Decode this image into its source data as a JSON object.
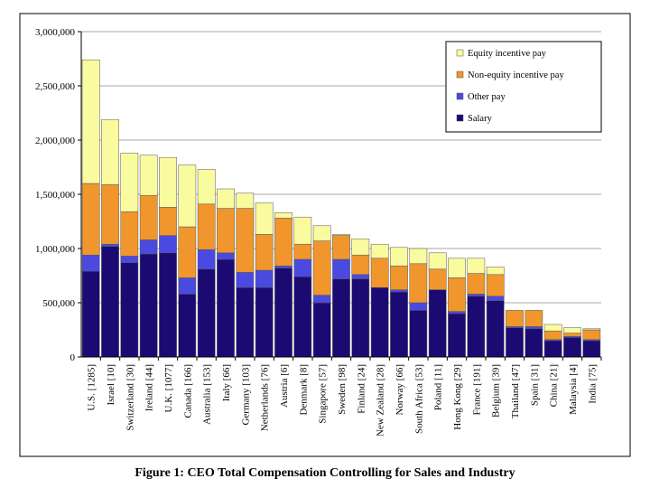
{
  "chart_data": {
    "type": "bar",
    "stacked": true,
    "title": "",
    "xlabel": "",
    "ylabel": "",
    "ylim": [
      0,
      3000000
    ],
    "yticks": [
      0,
      500000,
      1000000,
      1500000,
      2000000,
      2500000,
      3000000
    ],
    "ytick_labels": [
      "0",
      "500,000",
      "1,000,000",
      "1,500,000",
      "2,000,000",
      "2,500,000",
      "3,000,000"
    ],
    "legend_position": "top-right",
    "legend_order": [
      "Equity incentive pay",
      "Non-equity incentive pay",
      "Other pay",
      "Salary"
    ],
    "categories": [
      "U.S. [1285]",
      "Israel [10]",
      "Switzerland [30]",
      "Ireland [44]",
      "U.K. [1077]",
      "Canada [166]",
      "Australia [153]",
      "Italy [66]",
      "Germany [103]",
      "Netherlands [76]",
      "Austria [6]",
      "Denmark [8]",
      "Singapore [57]",
      "Sweden [98]",
      "Finland [24]",
      "New Zealand [28]",
      "Norway [66]",
      "South Africa [53]",
      "Poland [11]",
      "Hong Kong [29]",
      "France [191]",
      "Belgium [39]",
      "Thailand [47]",
      "Spain [31]",
      "China [21]",
      "Malaysia [4]",
      "India [75]"
    ],
    "series": [
      {
        "name": "Salary",
        "color": "#1c0a73",
        "values": [
          790000,
          1020000,
          870000,
          950000,
          960000,
          580000,
          810000,
          900000,
          640000,
          640000,
          820000,
          740000,
          500000,
          720000,
          720000,
          640000,
          600000,
          430000,
          620000,
          400000,
          560000,
          520000,
          270000,
          260000,
          150000,
          180000,
          150000
        ]
      },
      {
        "name": "Other pay",
        "color": "#4a4ae0",
        "values": [
          150000,
          20000,
          60000,
          130000,
          160000,
          150000,
          180000,
          60000,
          140000,
          160000,
          20000,
          160000,
          70000,
          180000,
          40000,
          0,
          20000,
          70000,
          0,
          20000,
          20000,
          40000,
          10000,
          20000,
          10000,
          10000,
          10000
        ]
      },
      {
        "name": "Non-equity incentive pay",
        "color": "#f0962d",
        "values": [
          660000,
          550000,
          410000,
          410000,
          260000,
          470000,
          420000,
          410000,
          590000,
          330000,
          440000,
          140000,
          500000,
          220000,
          180000,
          270000,
          220000,
          360000,
          190000,
          310000,
          190000,
          200000,
          150000,
          150000,
          80000,
          30000,
          90000
        ]
      },
      {
        "name": "Equity incentive pay",
        "color": "#fafa9e",
        "values": [
          1140000,
          600000,
          540000,
          370000,
          460000,
          570000,
          320000,
          180000,
          140000,
          290000,
          50000,
          250000,
          140000,
          10000,
          150000,
          130000,
          170000,
          140000,
          150000,
          180000,
          140000,
          70000,
          0,
          0,
          60000,
          50000,
          10000
        ]
      }
    ]
  },
  "figure": {
    "caption": "Figure 1: CEO Total Compensation Controlling for Sales and Industry"
  },
  "colors": {
    "background": "#ffffff",
    "frame": "#000000",
    "gridline": "#8c8c8c"
  }
}
